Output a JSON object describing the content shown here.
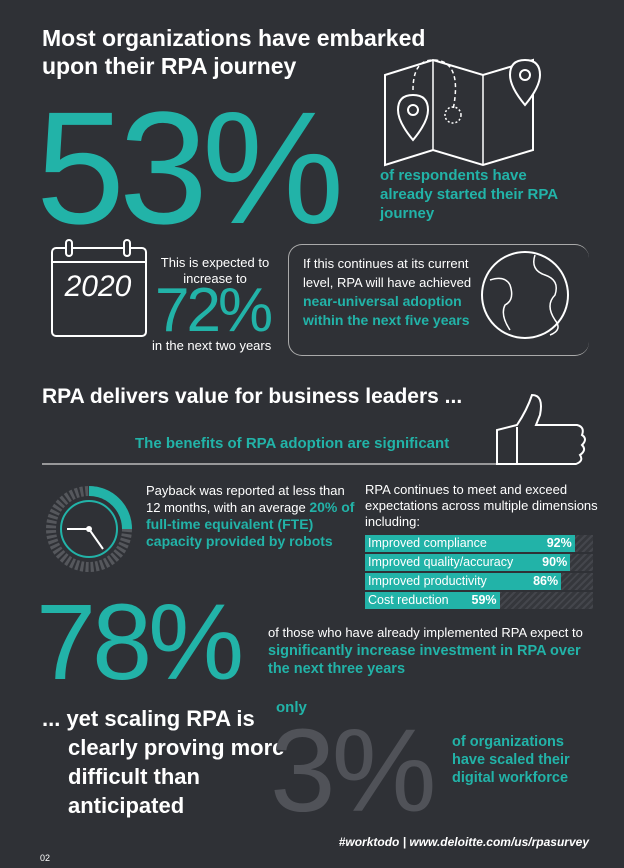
{
  "header": {
    "title": "Most organizations have embarked upon their RPA journey"
  },
  "journey": {
    "stat": "53%",
    "text": "of respondents have already started their RPA journey"
  },
  "forecast": {
    "year": "2020",
    "lead": "This is expected to increase to",
    "stat": "72%",
    "tail": "in the next two years"
  },
  "adoption": {
    "lead": "If this continues at its current level, RPA will have achieved",
    "highlight": "near-universal adoption within the next five years"
  },
  "value": {
    "title": "RPA delivers value for business leaders ...",
    "subtitle": "The benefits of RPA adoption are significant"
  },
  "payback": {
    "lead": "Payback was reported at less than 12 months, with an average",
    "highlight": "20% of full-time equivalent (FTE) capacity provided by robots"
  },
  "expectations": {
    "intro": "RPA continues to meet and exceed expectations across multiple dimensions including:",
    "items": [
      {
        "label": "Improved compliance",
        "value": 92,
        "value_label": "92%"
      },
      {
        "label": "Improved quality/accuracy",
        "value": 90,
        "value_label": "90%"
      },
      {
        "label": "Improved productivity",
        "value": 86,
        "value_label": "86%"
      },
      {
        "label": "Cost reduction",
        "value": 59,
        "value_label": "59%"
      }
    ]
  },
  "investment": {
    "stat": "78%",
    "lead": "of those who have already implemented RPA expect to",
    "highlight": "significantly increase investment in RPA over the next three years"
  },
  "scaling": {
    "title": "... yet scaling RPA is clearly proving more difficult than anticipated",
    "qualifier": "only",
    "stat": "3%",
    "text": "of organizations have scaled their digital workforce"
  },
  "footer": {
    "tags": "#worktodo | www.deloitte.com/us/rpasurvey",
    "page": "02"
  }
}
